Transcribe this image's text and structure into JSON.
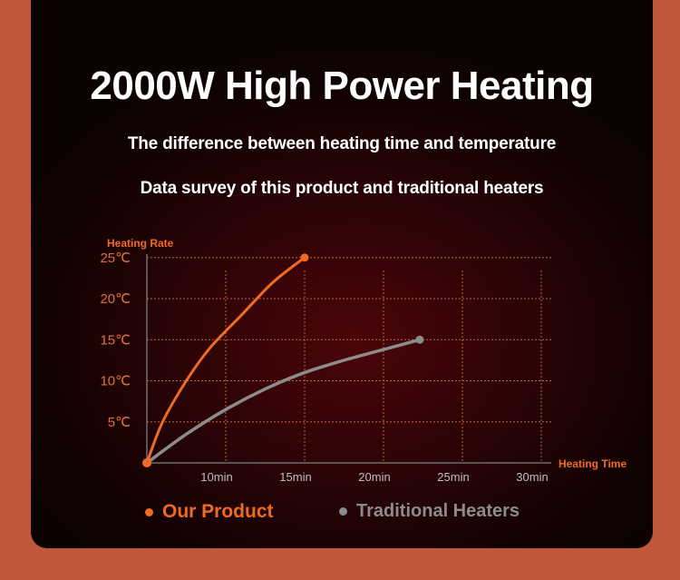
{
  "title": "2000W High Power Heating",
  "subtitle1": "The difference between heating time and temperature",
  "subtitle2": "Data survey of this product and traditional heaters",
  "colors": {
    "accent": "#f06a24",
    "secondary": "#8c8c8c",
    "border": "#c0573a"
  },
  "chart_data": {
    "type": "line",
    "ylabel": "Heating Rate",
    "xlabel": "Heating Time",
    "x_ticks": [
      "10min",
      "15min",
      "20min",
      "25min",
      "30min"
    ],
    "y_ticks": [
      "5℃",
      "10℃",
      "15℃",
      "20℃",
      "25℃"
    ],
    "xlim": [
      5,
      30
    ],
    "ylim": [
      0,
      25
    ],
    "grid": true,
    "series": [
      {
        "name": "Our Product",
        "color": "#f06a24",
        "x": [
          5,
          6,
          7.5,
          9,
          11,
          13,
          15
        ],
        "y": [
          0,
          5,
          10,
          14,
          18,
          22,
          25
        ]
      },
      {
        "name": "Traditional Heaters",
        "color": "#8c8c8c",
        "x": [
          5,
          7.5,
          10,
          12.5,
          15,
          17.5,
          20,
          22.3
        ],
        "y": [
          0,
          3.5,
          6.5,
          9,
          11,
          12.5,
          13.8,
          15
        ]
      }
    ]
  }
}
